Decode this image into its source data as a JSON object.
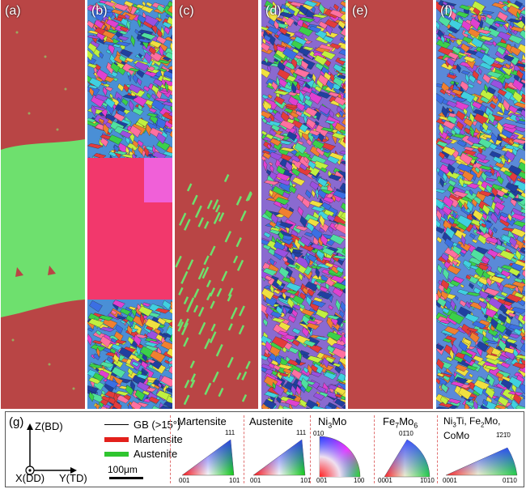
{
  "panels": [
    {
      "label": "(a)",
      "type": "phase"
    },
    {
      "label": "(b)",
      "type": "ipf"
    },
    {
      "label": "(c)",
      "type": "phase"
    },
    {
      "label": "(d)",
      "type": "ipf"
    },
    {
      "label": "(e)",
      "type": "phase"
    },
    {
      "label": "(f)",
      "type": "ipf"
    }
  ],
  "legend": {
    "label": "(g)",
    "axes": {
      "z": "Z(BD)",
      "x": "X(DD)",
      "y": "Y(TD)"
    },
    "items": [
      {
        "name": "GB (>15°)",
        "color": "#000000"
      },
      {
        "name": "Martensite",
        "color": "#e3201b"
      },
      {
        "name": "Austenite",
        "color": "#2fc52f"
      }
    ],
    "scalebar": "100μm",
    "keys": [
      {
        "title": "Martensite",
        "top": "111",
        "left": "001",
        "right": "101"
      },
      {
        "title": "Austenite",
        "top": "111",
        "left": "001",
        "right": "101"
      },
      {
        "title": "Ni3Mo",
        "top": "010",
        "left": "001",
        "right": "100"
      },
      {
        "title": "Fe7Mo6",
        "top": "01̄10",
        "left": "0001",
        "right": "1̄010"
      },
      {
        "title": "Ni3Ti, Fe2Mo,",
        "title2": "CoMo",
        "top": "1̄21̄0",
        "left": "0001",
        "right": "01̄10"
      }
    ]
  }
}
